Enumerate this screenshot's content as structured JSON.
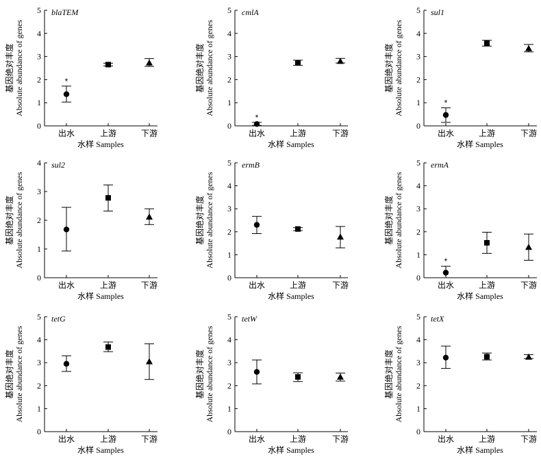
{
  "figure": {
    "ylabel_cn": "基因绝对丰度",
    "ylabel_en": "Absolute abundance of genes",
    "xlabel": "水样 Samples",
    "categories": [
      "出水",
      "上游",
      "下游"
    ],
    "markers": [
      "circle",
      "square",
      "triangle"
    ],
    "significance_mark": "*",
    "color": "#000000"
  },
  "chart_data": [
    {
      "type": "scatter",
      "panel": "blaTEM",
      "title": "blaTEM",
      "xlabel": "水样 Samples",
      "ylabel": "基因绝对丰度 Absolute abundance of genes",
      "categories": [
        "出水",
        "上游",
        "下游"
      ],
      "values": [
        1.37,
        2.65,
        2.73
      ],
      "error_low": [
        1.03,
        2.59,
        2.57
      ],
      "error_high": [
        1.72,
        2.71,
        2.91
      ],
      "significant": [
        true,
        false,
        false
      ],
      "ylim": [
        0,
        5
      ],
      "yticks": [
        0,
        1,
        2,
        3,
        4,
        5
      ]
    },
    {
      "type": "scatter",
      "panel": "cmlA",
      "title": "cmlA",
      "xlabel": "水样 Samples",
      "ylabel": "基因绝对丰度 Absolute abundance of genes",
      "categories": [
        "出水",
        "上游",
        "下游"
      ],
      "values": [
        0.08,
        2.72,
        2.8
      ],
      "error_low": [
        0.02,
        2.62,
        2.72
      ],
      "error_high": [
        0.15,
        2.84,
        2.92
      ],
      "significant": [
        true,
        false,
        false
      ],
      "ylim": [
        0,
        5
      ],
      "yticks": [
        0,
        1,
        2,
        3,
        4,
        5
      ]
    },
    {
      "type": "scatter",
      "panel": "sul1",
      "title": "sul1",
      "xlabel": "水样 Samples",
      "ylabel": "基因绝对丰度 Absolute abundance of genes",
      "categories": [
        "出水",
        "上游",
        "下游"
      ],
      "values": [
        0.47,
        3.58,
        3.35
      ],
      "error_low": [
        0.15,
        3.45,
        3.2
      ],
      "error_high": [
        0.78,
        3.7,
        3.52
      ],
      "significant": [
        true,
        false,
        false
      ],
      "ylim": [
        0,
        5
      ],
      "yticks": [
        0,
        1,
        2,
        3,
        4,
        5
      ]
    },
    {
      "type": "scatter",
      "panel": "sul2",
      "title": "sul2",
      "xlabel": "水样 Samples",
      "ylabel": "基因绝对丰度 Absolute abundance of genes",
      "categories": [
        "出水",
        "上游",
        "下游"
      ],
      "values": [
        1.68,
        2.78,
        2.12
      ],
      "error_low": [
        0.93,
        2.32,
        1.85
      ],
      "error_high": [
        2.45,
        3.23,
        2.4
      ],
      "significant": [
        false,
        false,
        false
      ],
      "ylim": [
        0,
        4
      ],
      "yticks": [
        0,
        1,
        2,
        3,
        4
      ]
    },
    {
      "type": "scatter",
      "panel": "ermB",
      "title": "ermB",
      "xlabel": "水样 Samples",
      "ylabel": "基因绝对丰度 Absolute abundance of genes",
      "categories": [
        "出水",
        "上游",
        "下游"
      ],
      "values": [
        2.3,
        2.12,
        1.78
      ],
      "error_low": [
        1.92,
        2.05,
        1.3
      ],
      "error_high": [
        2.67,
        2.18,
        2.23
      ],
      "significant": [
        false,
        false,
        false
      ],
      "ylim": [
        0,
        5
      ],
      "yticks": [
        0,
        1,
        2,
        3,
        4,
        5
      ]
    },
    {
      "type": "scatter",
      "panel": "ermA",
      "title": "ermA",
      "xlabel": "水样 Samples",
      "ylabel": "基因绝对丰度 Absolute abundance of genes",
      "categories": [
        "出水",
        "上游",
        "下游"
      ],
      "values": [
        0.22,
        1.52,
        1.33
      ],
      "error_low": [
        0.0,
        1.06,
        0.76
      ],
      "error_high": [
        0.5,
        1.98,
        1.9
      ],
      "significant": [
        true,
        false,
        false
      ],
      "ylim": [
        0,
        5
      ],
      "yticks": [
        0,
        1,
        2,
        3,
        4,
        5
      ]
    },
    {
      "type": "scatter",
      "panel": "tetG",
      "title": "tetG",
      "xlabel": "水样 Samples",
      "ylabel": "基因绝对丰度 Absolute abundance of genes",
      "categories": [
        "出水",
        "上游",
        "下游"
      ],
      "values": [
        2.95,
        3.68,
        3.05
      ],
      "error_low": [
        2.62,
        3.48,
        2.27
      ],
      "error_high": [
        3.3,
        3.9,
        3.82
      ],
      "significant": [
        false,
        false,
        false
      ],
      "ylim": [
        0,
        5
      ],
      "yticks": [
        0,
        1,
        2,
        3,
        4,
        5
      ]
    },
    {
      "type": "scatter",
      "panel": "tetW",
      "title": "tetW",
      "xlabel": "水样 Samples",
      "ylabel": "基因绝对丰度 Absolute abundance of genes",
      "categories": [
        "出水",
        "上游",
        "下游"
      ],
      "values": [
        2.6,
        2.38,
        2.38
      ],
      "error_low": [
        2.08,
        2.18,
        2.2
      ],
      "error_high": [
        3.12,
        2.56,
        2.55
      ],
      "significant": [
        false,
        false,
        false
      ],
      "ylim": [
        0,
        5
      ],
      "yticks": [
        0,
        1,
        2,
        3,
        4,
        5
      ]
    },
    {
      "type": "scatter",
      "panel": "tetX",
      "title": "tetX",
      "xlabel": "水样 Samples",
      "ylabel": "基因绝对丰度 Absolute abundance of genes",
      "categories": [
        "出水",
        "上游",
        "下游"
      ],
      "values": [
        3.22,
        3.26,
        3.25
      ],
      "error_low": [
        2.75,
        3.12,
        3.18
      ],
      "error_high": [
        3.72,
        3.42,
        3.35
      ],
      "significant": [
        false,
        false,
        false
      ],
      "ylim": [
        0,
        5
      ],
      "yticks": [
        0,
        1,
        2,
        3,
        4,
        5
      ]
    }
  ]
}
